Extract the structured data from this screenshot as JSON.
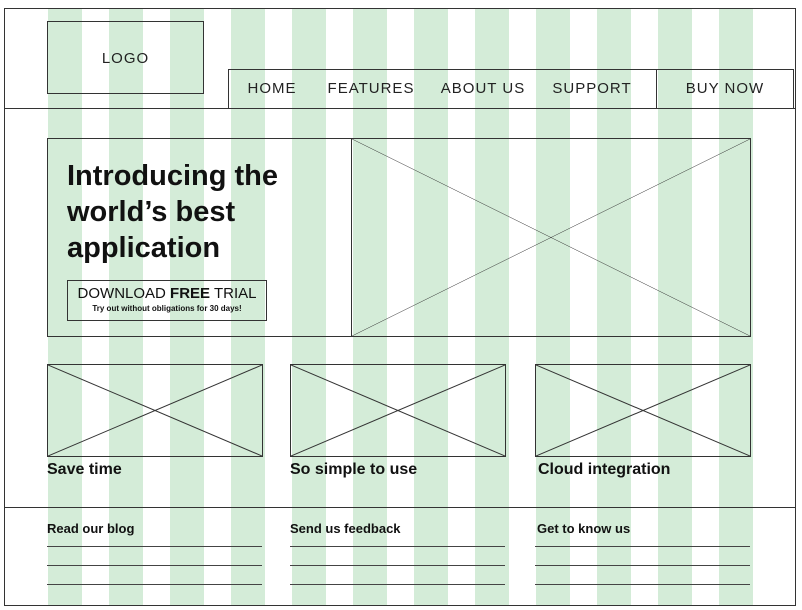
{
  "header": {
    "logo": "LOGO",
    "nav": [
      {
        "label": "HOME"
      },
      {
        "label": "FEATURES"
      },
      {
        "label": "ABOUT US"
      },
      {
        "label": "SUPPORT"
      }
    ],
    "cta": "BUY NOW"
  },
  "hero": {
    "headline_line1": "Introducing the",
    "headline_line2": "world’s best",
    "headline_line3": "application",
    "button_prefix": "DOWNLOAD ",
    "button_bold": "FREE",
    "button_suffix": " TRIAL",
    "button_sub": "Try out without obligations for 30 days!"
  },
  "features": [
    {
      "title": "Save time"
    },
    {
      "title": "So simple to use"
    },
    {
      "title": "Cloud integration"
    }
  ],
  "footer": [
    {
      "title": "Read our blog"
    },
    {
      "title": "Send us feedback"
    },
    {
      "title": "Get to know us"
    }
  ],
  "colors": {
    "grid_column": "#d4ecd8",
    "stroke": "#333333"
  }
}
